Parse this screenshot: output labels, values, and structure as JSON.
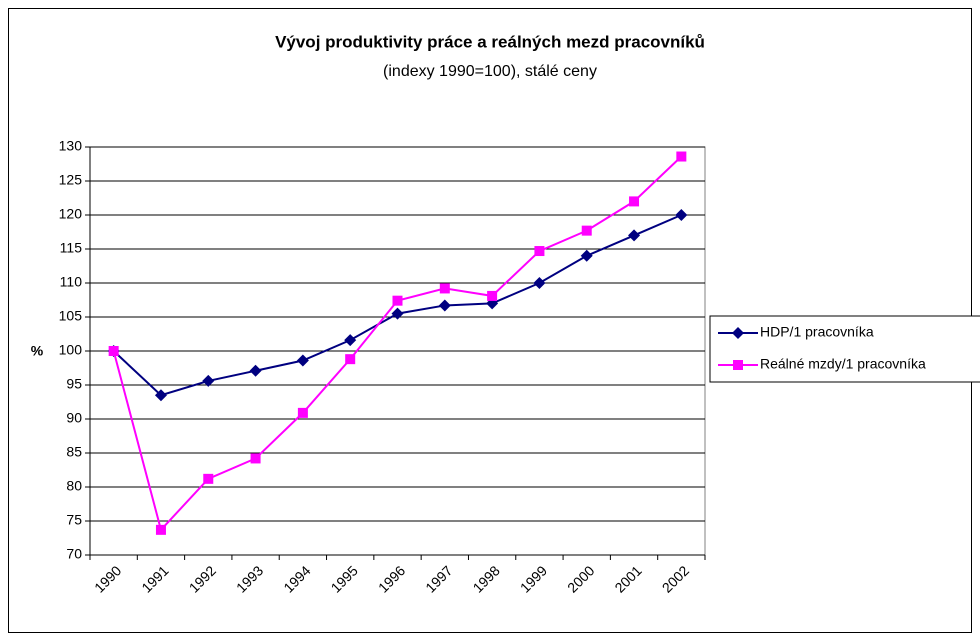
{
  "chart_data": {
    "type": "line",
    "title": "Vývoj produktivity práce a reálných mezd pracovníků",
    "subtitle": "(indexy 1990=100), stálé ceny",
    "y_label": "%",
    "categories": [
      "1990",
      "1991",
      "1992",
      "1993",
      "1994",
      "1995",
      "1996",
      "1997",
      "1998",
      "1999",
      "2000",
      "2001",
      "2002"
    ],
    "series": [
      {
        "name": "HDP/1 pracovníka",
        "color": "#000080",
        "marker": "diamond",
        "values": [
          100,
          93.5,
          95.6,
          97.1,
          98.6,
          101.6,
          105.5,
          106.7,
          107,
          110,
          114,
          117,
          120
        ]
      },
      {
        "name": "Reálné mzdy/1 pracovníka",
        "color": "#ff00ff",
        "marker": "square",
        "values": [
          100,
          73.7,
          81.2,
          84.2,
          90.9,
          98.8,
          107.4,
          109.2,
          108.1,
          114.7,
          117.7,
          122,
          128.6
        ]
      }
    ],
    "ylim": [
      70,
      130
    ],
    "yticks": [
      70,
      75,
      80,
      85,
      90,
      95,
      100,
      105,
      110,
      115,
      120,
      125,
      130
    ],
    "grid": true,
    "legend": "right"
  }
}
